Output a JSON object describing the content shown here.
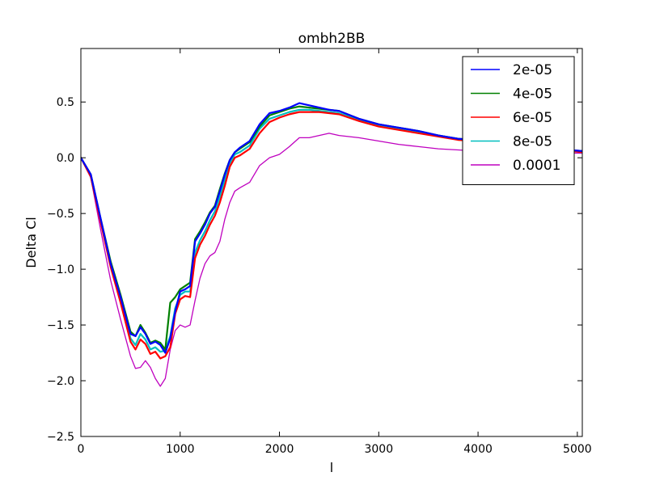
{
  "chart_data": {
    "type": "line",
    "title": "ombh2BB",
    "xlabel": "l",
    "ylabel": "Delta Cl",
    "xlim": [
      0,
      5050
    ],
    "ylim": [
      -2.5,
      0.98
    ],
    "xticks": [
      0,
      1000,
      2000,
      3000,
      4000,
      5000
    ],
    "xtick_labels": [
      "0",
      "1000",
      "2000",
      "3000",
      "4000",
      "5000"
    ],
    "yticks": [
      -2.5,
      -2.0,
      -1.5,
      -1.0,
      -0.5,
      0.0,
      0.5
    ],
    "ytick_labels": [
      "−2.5",
      "−2.0",
      "−1.5",
      "−1.0",
      "−0.5",
      "0.0",
      "0.5"
    ],
    "grid": false,
    "legend_position": "top-right",
    "series": [
      {
        "name": "2e-05",
        "color": "#0000ff",
        "x": [
          0,
          100,
          200,
          300,
          400,
          500,
          550,
          600,
          650,
          700,
          750,
          800,
          850,
          900,
          950,
          1000,
          1050,
          1100,
          1150,
          1200,
          1250,
          1300,
          1350,
          1400,
          1450,
          1500,
          1550,
          1600,
          1700,
          1800,
          1900,
          2000,
          2100,
          2200,
          2300,
          2400,
          2500,
          2600,
          2800,
          3000,
          3200,
          3400,
          3600,
          3800,
          4000,
          4500,
          5050
        ],
        "y": [
          0.0,
          -0.15,
          -0.55,
          -0.95,
          -1.25,
          -1.58,
          -1.6,
          -1.52,
          -1.58,
          -1.67,
          -1.65,
          -1.68,
          -1.75,
          -1.62,
          -1.38,
          -1.2,
          -1.18,
          -1.15,
          -0.75,
          -0.68,
          -0.6,
          -0.5,
          -0.44,
          -0.3,
          -0.15,
          -0.02,
          0.05,
          0.09,
          0.15,
          0.3,
          0.4,
          0.42,
          0.45,
          0.49,
          0.47,
          0.45,
          0.43,
          0.42,
          0.35,
          0.3,
          0.27,
          0.24,
          0.2,
          0.17,
          0.16,
          0.1,
          0.06
        ]
      },
      {
        "name": "4e-05",
        "color": "#008000",
        "x": [
          0,
          100,
          200,
          300,
          400,
          500,
          550,
          600,
          650,
          700,
          750,
          800,
          850,
          900,
          950,
          1000,
          1050,
          1100,
          1150,
          1200,
          1250,
          1300,
          1350,
          1400,
          1450,
          1500,
          1550,
          1600,
          1700,
          1800,
          1900,
          2000,
          2100,
          2200,
          2300,
          2400,
          2500,
          2600,
          2800,
          3000,
          3200,
          3400,
          3600,
          3800,
          4000,
          4500,
          5050
        ],
        "y": [
          0.0,
          -0.15,
          -0.55,
          -0.93,
          -1.23,
          -1.56,
          -1.6,
          -1.5,
          -1.57,
          -1.66,
          -1.64,
          -1.66,
          -1.72,
          -1.3,
          -1.25,
          -1.18,
          -1.15,
          -1.12,
          -0.73,
          -0.66,
          -0.58,
          -0.49,
          -0.43,
          -0.28,
          -0.14,
          -0.02,
          0.05,
          0.08,
          0.14,
          0.28,
          0.38,
          0.41,
          0.44,
          0.46,
          0.45,
          0.44,
          0.43,
          0.42,
          0.35,
          0.3,
          0.27,
          0.24,
          0.2,
          0.17,
          0.16,
          0.1,
          0.06
        ]
      },
      {
        "name": "6e-05",
        "color": "#ff0000",
        "x": [
          0,
          100,
          200,
          300,
          400,
          500,
          550,
          600,
          650,
          700,
          750,
          800,
          850,
          900,
          950,
          1000,
          1050,
          1100,
          1150,
          1200,
          1250,
          1300,
          1350,
          1400,
          1450,
          1500,
          1550,
          1600,
          1700,
          1800,
          1900,
          2000,
          2100,
          2200,
          2300,
          2400,
          2500,
          2600,
          2800,
          3000,
          3200,
          3400,
          3600,
          3800,
          4000,
          4500,
          5050
        ],
        "y": [
          0.0,
          -0.17,
          -0.58,
          -0.98,
          -1.3,
          -1.65,
          -1.72,
          -1.63,
          -1.67,
          -1.76,
          -1.74,
          -1.8,
          -1.78,
          -1.7,
          -1.4,
          -1.27,
          -1.24,
          -1.25,
          -0.9,
          -0.78,
          -0.7,
          -0.6,
          -0.52,
          -0.4,
          -0.25,
          -0.08,
          0.0,
          0.02,
          0.08,
          0.22,
          0.32,
          0.36,
          0.39,
          0.41,
          0.41,
          0.41,
          0.4,
          0.39,
          0.33,
          0.28,
          0.25,
          0.22,
          0.19,
          0.16,
          0.15,
          0.1,
          0.05
        ]
      },
      {
        "name": "8e-05",
        "color": "#00bfbf",
        "x": [
          0,
          100,
          200,
          300,
          400,
          500,
          550,
          600,
          650,
          700,
          750,
          800,
          850,
          900,
          950,
          1000,
          1050,
          1100,
          1150,
          1200,
          1250,
          1300,
          1350,
          1400,
          1450,
          1500,
          1550,
          1600,
          1700,
          1800,
          1900,
          2000,
          2100,
          2200,
          2300,
          2400,
          2500,
          2600,
          2800,
          3000,
          3200,
          3400,
          3600,
          3800,
          4000,
          4500,
          5050
        ],
        "y": [
          0.0,
          -0.16,
          -0.56,
          -0.95,
          -1.27,
          -1.62,
          -1.68,
          -1.58,
          -1.63,
          -1.72,
          -1.7,
          -1.74,
          -1.73,
          -1.6,
          -1.35,
          -1.23,
          -1.2,
          -1.2,
          -0.85,
          -0.74,
          -0.66,
          -0.56,
          -0.48,
          -0.35,
          -0.2,
          -0.05,
          0.03,
          0.05,
          0.11,
          0.26,
          0.35,
          0.38,
          0.41,
          0.43,
          0.43,
          0.42,
          0.41,
          0.4,
          0.34,
          0.29,
          0.26,
          0.23,
          0.2,
          0.17,
          0.15,
          0.1,
          0.05
        ]
      },
      {
        "name": "0.0001",
        "color": "#bf00bf",
        "x": [
          0,
          100,
          200,
          300,
          400,
          500,
          550,
          600,
          650,
          700,
          750,
          800,
          850,
          900,
          950,
          1000,
          1050,
          1100,
          1150,
          1200,
          1250,
          1300,
          1350,
          1400,
          1450,
          1500,
          1550,
          1600,
          1700,
          1800,
          1900,
          2000,
          2100,
          2200,
          2300,
          2400,
          2500,
          2600,
          2800,
          3000,
          3200,
          3400,
          3600,
          3800,
          4000,
          4500,
          5050
        ],
        "y": [
          0.0,
          -0.18,
          -0.65,
          -1.1,
          -1.45,
          -1.78,
          -1.89,
          -1.88,
          -1.82,
          -1.88,
          -1.98,
          -2.05,
          -1.98,
          -1.72,
          -1.55,
          -1.5,
          -1.52,
          -1.5,
          -1.28,
          -1.08,
          -0.95,
          -0.88,
          -0.85,
          -0.75,
          -0.55,
          -0.4,
          -0.3,
          -0.27,
          -0.22,
          -0.07,
          0.0,
          0.03,
          0.1,
          0.18,
          0.18,
          0.2,
          0.22,
          0.2,
          0.18,
          0.15,
          0.12,
          0.1,
          0.08,
          0.07,
          0.06,
          0.05,
          0.04
        ]
      }
    ]
  }
}
